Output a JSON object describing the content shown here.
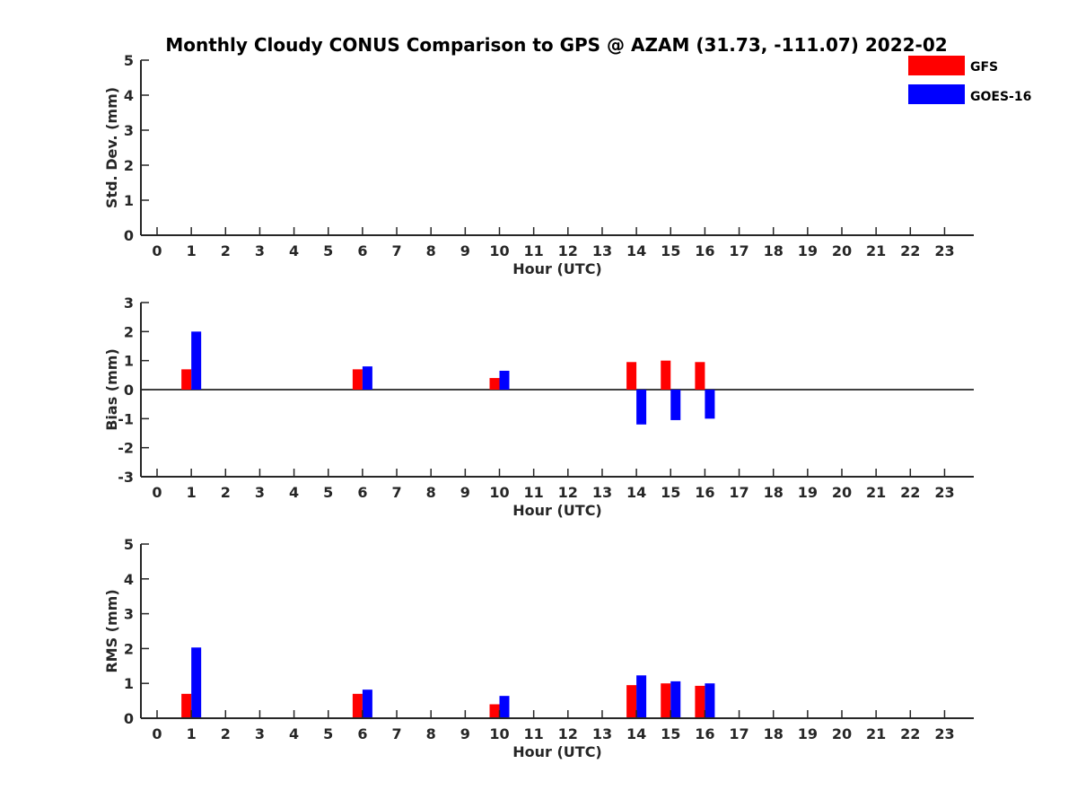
{
  "title": "Monthly Cloudy CONUS Comparison to GPS @ AZAM (31.73, -111.07) 2022-02",
  "legend": [
    {
      "name": "GFS",
      "color": "#ff0000"
    },
    {
      "name": "GOES-16",
      "color": "#0000ff"
    }
  ],
  "chart_data": [
    {
      "type": "bar",
      "title": "Monthly Cloudy CONUS Comparison to GPS @ AZAM (31.73, -111.07) 2022-02",
      "xlabel": "Hour (UTC)",
      "ylabel": "Std. Dev. (mm)",
      "categories": [
        "0",
        "1",
        "2",
        "3",
        "4",
        "5",
        "6",
        "7",
        "8",
        "9",
        "10",
        "11",
        "12",
        "13",
        "14",
        "15",
        "16",
        "17",
        "18",
        "19",
        "20",
        "21",
        "22",
        "23"
      ],
      "ylim": [
        0,
        5
      ],
      "yticks": [
        "0",
        "1",
        "2",
        "3",
        "4",
        "5"
      ],
      "zero_line": false,
      "series": [
        {
          "name": "GFS",
          "values": [
            null,
            0,
            null,
            null,
            null,
            null,
            0,
            null,
            null,
            null,
            0,
            null,
            null,
            null,
            0,
            0,
            0,
            null,
            null,
            null,
            null,
            null,
            null,
            null
          ]
        },
        {
          "name": "GOES-16",
          "values": [
            null,
            0,
            null,
            null,
            null,
            null,
            0,
            null,
            null,
            null,
            0,
            null,
            null,
            null,
            0,
            0,
            0,
            null,
            null,
            null,
            null,
            null,
            null,
            null
          ]
        }
      ]
    },
    {
      "type": "bar",
      "xlabel": "Hour (UTC)",
      "ylabel": "Bias (mm)",
      "categories": [
        "0",
        "1",
        "2",
        "3",
        "4",
        "5",
        "6",
        "7",
        "8",
        "9",
        "10",
        "11",
        "12",
        "13",
        "14",
        "15",
        "16",
        "17",
        "18",
        "19",
        "20",
        "21",
        "22",
        "23"
      ],
      "ylim": [
        -3,
        3
      ],
      "yticks": [
        "-3",
        "-2",
        "-1",
        "0",
        "1",
        "2",
        "3"
      ],
      "zero_line": true,
      "series": [
        {
          "name": "GFS",
          "values": [
            null,
            0.7,
            null,
            null,
            null,
            null,
            0.7,
            null,
            null,
            null,
            0.4,
            null,
            null,
            null,
            0.95,
            1.0,
            0.95,
            null,
            null,
            null,
            null,
            null,
            null,
            null
          ]
        },
        {
          "name": "GOES-16",
          "values": [
            null,
            2.0,
            null,
            null,
            null,
            null,
            0.8,
            null,
            null,
            null,
            0.65,
            null,
            null,
            null,
            -1.2,
            -1.05,
            -1.0,
            null,
            null,
            null,
            null,
            null,
            null,
            null
          ]
        }
      ]
    },
    {
      "type": "bar",
      "xlabel": "Hour (UTC)",
      "ylabel": "RMS (mm)",
      "categories": [
        "0",
        "1",
        "2",
        "3",
        "4",
        "5",
        "6",
        "7",
        "8",
        "9",
        "10",
        "11",
        "12",
        "13",
        "14",
        "15",
        "16",
        "17",
        "18",
        "19",
        "20",
        "21",
        "22",
        "23"
      ],
      "ylim": [
        0,
        5
      ],
      "yticks": [
        "0",
        "1",
        "2",
        "3",
        "4",
        "5"
      ],
      "zero_line": false,
      "series": [
        {
          "name": "GFS",
          "values": [
            null,
            0.7,
            null,
            null,
            null,
            null,
            0.7,
            null,
            null,
            null,
            0.4,
            null,
            null,
            null,
            0.95,
            1.0,
            0.93,
            null,
            null,
            null,
            null,
            null,
            null,
            null
          ]
        },
        {
          "name": "GOES-16",
          "values": [
            null,
            2.03,
            null,
            null,
            null,
            null,
            0.82,
            null,
            null,
            null,
            0.64,
            null,
            null,
            null,
            1.23,
            1.06,
            1.0,
            null,
            null,
            null,
            null,
            null,
            null,
            null
          ]
        }
      ]
    }
  ]
}
